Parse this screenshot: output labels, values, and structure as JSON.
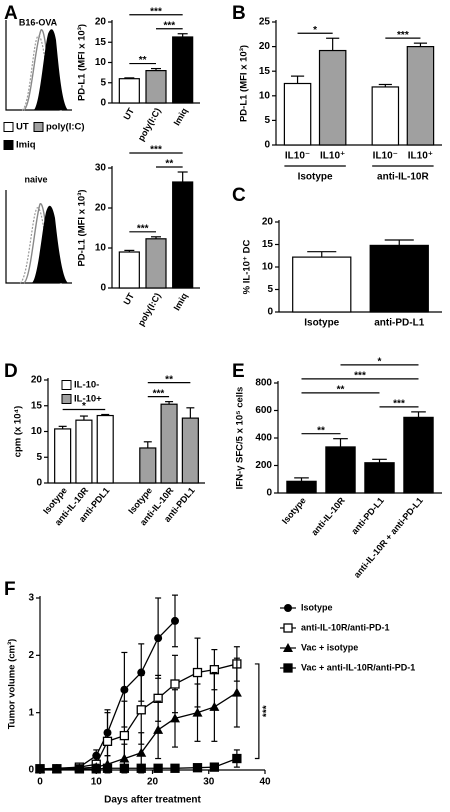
{
  "chart_data": [
    {
      "panel": "A",
      "subtitle": "B16-OVA",
      "type": "bar",
      "y_label": "PD-L1 (MFI x 10³)",
      "categories": [
        "UT",
        "poly(I:C)",
        "Imiq"
      ],
      "colors": [
        "#ffffff",
        "#a0a0a0",
        "#000000"
      ],
      "values": [
        6,
        8,
        16.3
      ],
      "errors": [
        0.2,
        0.5,
        0.8
      ],
      "ylim": [
        0,
        20
      ],
      "yticks": [
        0,
        5,
        10,
        15,
        20
      ],
      "legend": true,
      "annotations": [
        {
          "from": 0,
          "to": 1,
          "label": "**"
        },
        {
          "from": 1,
          "to": 2,
          "label": "***"
        },
        {
          "from": 0,
          "to": 2,
          "label": "***"
        }
      ]
    },
    {
      "subtitle": "naive",
      "type": "bar",
      "y_label": "PD-L1 (MFI x 10³)",
      "categories": [
        "UT",
        "poly(I:C)",
        "Imiq"
      ],
      "colors": [
        "#ffffff",
        "#a0a0a0",
        "#000000"
      ],
      "values": [
        9,
        12.3,
        26.5
      ],
      "errors": [
        0.4,
        0.5,
        2.5
      ],
      "ylim": [
        0,
        30
      ],
      "yticks": [
        0,
        10,
        20,
        30
      ],
      "annotations": [
        {
          "from": 0,
          "to": 1,
          "label": "***"
        },
        {
          "from": 1,
          "to": 2,
          "label": "**"
        },
        {
          "from": 0,
          "to": 2,
          "label": "***"
        }
      ]
    },
    {
      "panel": "B",
      "type": "bar",
      "y_label": "PD-L1 (MFI x 10³)",
      "categories": [
        "IL10⁻",
        "IL10⁺"
      ],
      "colors": [
        "#ffffff",
        "#a0a0a0"
      ],
      "series": [
        {
          "name": "Isotype",
          "values": [
            12.5,
            19.2
          ],
          "errors": [
            1.5,
            2.5
          ]
        },
        {
          "name": "anti-IL-10R",
          "values": [
            11.8,
            20
          ],
          "errors": [
            0.5,
            0.7
          ]
        }
      ],
      "ylim": [
        0,
        25
      ],
      "yticks": [
        0,
        5,
        10,
        15,
        20,
        25
      ],
      "annotations": [
        {
          "from": 0,
          "to": 1,
          "label": "*"
        },
        {
          "from": 2,
          "to": 3,
          "label": "***"
        }
      ]
    },
    {
      "panel": "C",
      "type": "bar",
      "y_label": "% IL-10⁺ DC",
      "categories": [
        "Isotype",
        "anti-PD-L1"
      ],
      "colors": [
        "#ffffff",
        "#000000"
      ],
      "values": [
        12.2,
        14.8
      ],
      "errors": [
        1.2,
        1.2
      ],
      "ylim": [
        0,
        20
      ],
      "yticks": [
        0,
        5,
        10,
        15,
        20
      ]
    },
    {
      "panel": "D",
      "type": "bar",
      "y_label": "cpm (x 10⁴)",
      "categories": [
        "Isotype",
        "anti-IL-10R",
        "anti-PDL1"
      ],
      "series": [
        {
          "name": "IL-10-",
          "color": "#ffffff",
          "values": [
            10.5,
            12.2,
            13.1
          ],
          "errors": [
            0.5,
            0.8,
            0.2
          ]
        },
        {
          "name": "IL-10+",
          "color": "#a0a0a0",
          "values": [
            6.8,
            15.3,
            12.6
          ],
          "errors": [
            1.2,
            0.5,
            2
          ]
        }
      ],
      "ylim": [
        0,
        20
      ],
      "yticks": [
        0,
        5,
        10,
        15,
        20
      ],
      "legend": true,
      "annotations": [
        {
          "from": 0,
          "to": 2,
          "label": "*"
        },
        {
          "from": 3,
          "to": 4,
          "label": "***"
        },
        {
          "from": 3,
          "to": 5,
          "label": "**"
        }
      ]
    },
    {
      "panel": "E",
      "type": "bar",
      "y_label": "IFN-γ SFC/5 x 10⁵ cells",
      "categories": [
        "Isotype",
        "anti-IL-10R",
        "anti-PD-L1",
        "anti-IL-10R + anti-PD-L1"
      ],
      "colors": [
        "#000000",
        "#000000",
        "#000000",
        "#000000"
      ],
      "values": [
        85,
        335,
        220,
        550
      ],
      "errors": [
        25,
        60,
        25,
        40
      ],
      "ylim": [
        0,
        800
      ],
      "yticks": [
        0,
        200,
        400,
        600,
        800
      ],
      "annotations": [
        {
          "from": 0,
          "to": 1,
          "label": "**"
        },
        {
          "from": 2,
          "to": 3,
          "label": "***"
        },
        {
          "from": 0,
          "to": 2,
          "label": "**"
        },
        {
          "from": 0,
          "to": 3,
          "label": "***"
        },
        {
          "from": 1,
          "to": 3,
          "label": "*"
        }
      ]
    },
    {
      "panel": "F",
      "type": "line",
      "x_label": "Days after treatment",
      "y_label": "Tumor volume (cm³)",
      "x": [
        0,
        3,
        7,
        10,
        12,
        15,
        18,
        21,
        24,
        28,
        31,
        35
      ],
      "series": [
        {
          "name": "Isotype",
          "marker": "circle",
          "color": "#000000",
          "values": [
            0.02,
            0.03,
            0.05,
            0.25,
            0.65,
            1.4,
            1.7,
            2.3,
            2.6,
            null,
            null,
            null
          ],
          "errors": [
            0,
            0,
            0.03,
            0.1,
            0.4,
            0.65,
            0.5,
            0.7,
            0.45,
            null,
            null,
            null
          ]
        },
        {
          "name": "anti-IL-10R/anti-PD-1",
          "marker": "square-open",
          "color": "#000000",
          "values": [
            0.02,
            0.02,
            0.05,
            0.1,
            0.5,
            0.6,
            1.05,
            1.25,
            1.5,
            1.7,
            1.75,
            1.85
          ],
          "errors": [
            0,
            0,
            0.03,
            0.07,
            0.5,
            0.6,
            0.6,
            0.4,
            0.5,
            0.6,
            0.35,
            0.3
          ]
        },
        {
          "name": "Vac + isotype",
          "marker": "triangle",
          "color": "#000000",
          "values": [
            0.02,
            0.02,
            0.03,
            0.05,
            0.1,
            0.2,
            0.3,
            0.7,
            0.9,
            1.0,
            1.1,
            1.35
          ],
          "errors": [
            0,
            0,
            0.02,
            0.05,
            0.15,
            0.25,
            0.35,
            0.5,
            0.5,
            0.5,
            0.6,
            0.6
          ]
        },
        {
          "name": "Vac + anti-IL-10R/anti-PD-1",
          "marker": "square",
          "color": "#000000",
          "values": [
            0.02,
            0.02,
            0.02,
            0.02,
            0.03,
            0.03,
            0.03,
            0.03,
            0.03,
            0.04,
            0.05,
            0.2
          ],
          "errors": [
            0,
            0,
            0,
            0,
            0.02,
            0.03,
            0.03,
            0.03,
            0.03,
            0.03,
            0.05,
            0.15
          ]
        }
      ],
      "xlim": [
        0,
        40
      ],
      "xticks": [
        0,
        10,
        20,
        30,
        40
      ],
      "ylim": [
        0,
        3
      ],
      "yticks": [
        0,
        1,
        2,
        3
      ],
      "legend": true,
      "annotations": [
        {
          "from": 1,
          "to": 3,
          "label": "***"
        }
      ]
    }
  ]
}
